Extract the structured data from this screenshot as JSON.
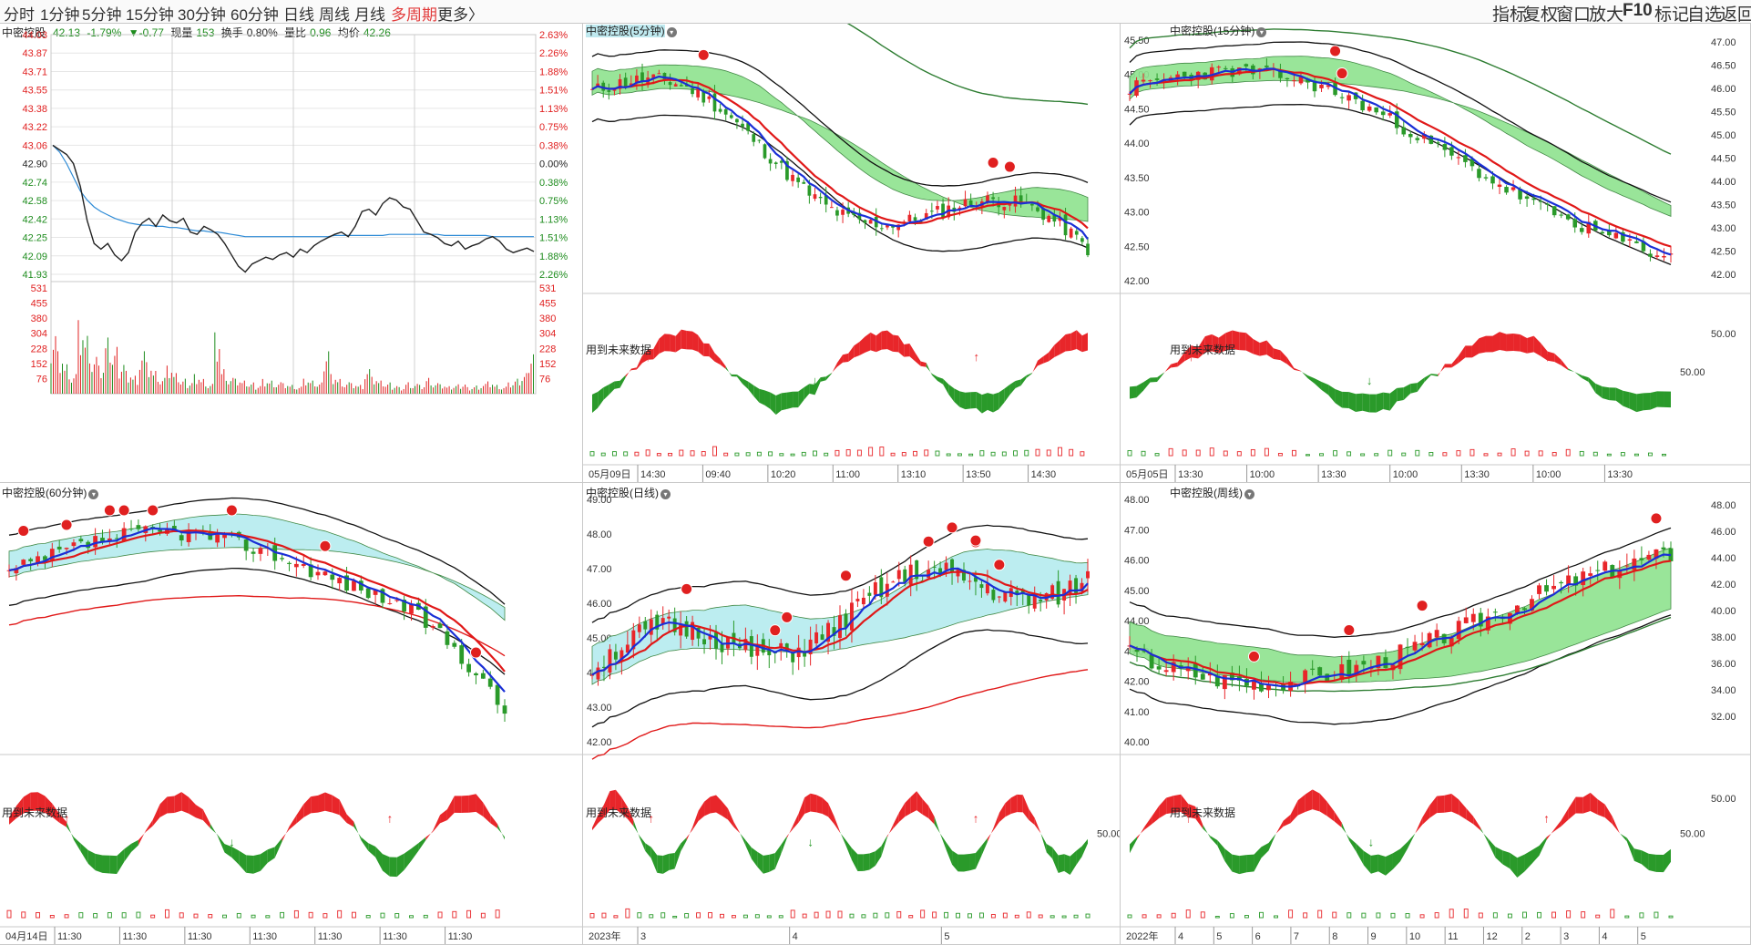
{
  "toolbar": {
    "tabs": [
      "分时",
      "1分钟",
      "5分钟",
      "15分钟",
      "30分钟",
      "60分钟",
      "日线",
      "周线",
      "月线",
      "多周期",
      "更多"
    ],
    "active_tab": "多周期",
    "more_arrow": "〉",
    "right_tools": [
      "指标",
      "复权",
      "窗口",
      "放大",
      "F10",
      "标记",
      "自选",
      "返回"
    ]
  },
  "intraday": {
    "stock": "中密控股",
    "price": "42.13",
    "change_pct": "-1.79%",
    "change": "▼-0.77",
    "volume_label": "现量",
    "volume": "153",
    "turnover_label": "换手",
    "turnover": "0.80%",
    "vol_ratio_label": "量比",
    "vol_ratio": "0.96",
    "avg_label": "均价",
    "avg": "42.26",
    "price_ticks": [
      "44.03",
      "43.87",
      "43.71",
      "43.55",
      "43.38",
      "43.22",
      "43.06",
      "42.90",
      "42.74",
      "42.58",
      "42.42",
      "42.25",
      "42.09",
      "41.93"
    ],
    "pct_ticks": [
      "2.63%",
      "2.26%",
      "1.88%",
      "1.51%",
      "1.13%",
      "0.75%",
      "0.38%",
      "0.00%",
      "0.38%",
      "0.75%",
      "1.13%",
      "1.51%",
      "1.88%",
      "2.26%"
    ],
    "vol_ticks": [
      "531",
      "455",
      "380",
      "304",
      "228",
      "152",
      "76"
    ],
    "price_series": [
      43.06,
      43.02,
      42.98,
      42.9,
      42.7,
      42.4,
      42.2,
      42.15,
      42.2,
      42.1,
      42.05,
      42.12,
      42.3,
      42.38,
      42.42,
      42.35,
      42.45,
      42.4,
      42.38,
      42.42,
      42.3,
      42.28,
      42.35,
      42.32,
      42.28,
      42.2,
      42.1,
      42.0,
      41.95,
      42.02,
      42.05,
      42.08,
      42.06,
      42.1,
      42.12,
      42.08,
      42.15,
      42.12,
      42.18,
      42.22,
      42.25,
      42.28,
      42.3,
      42.26,
      42.35,
      42.48,
      42.5,
      42.45,
      42.55,
      42.6,
      42.58,
      42.52,
      42.5,
      42.4,
      42.3,
      42.28,
      42.25,
      42.2,
      42.18,
      42.22,
      42.15,
      42.18,
      42.2,
      42.24,
      42.26,
      42.22,
      42.15,
      42.12,
      42.14,
      42.16,
      42.13
    ],
    "avg_series": [
      43.06,
      43.0,
      42.9,
      42.78,
      42.66,
      42.58,
      42.52,
      42.48,
      42.45,
      42.42,
      42.4,
      42.38,
      42.37,
      42.36,
      42.36,
      42.35,
      42.35,
      42.34,
      42.34,
      42.33,
      42.32,
      42.31,
      42.31,
      42.3,
      42.3,
      42.29,
      42.28,
      42.27,
      42.26,
      42.26,
      42.26,
      42.26,
      42.26,
      42.26,
      42.26,
      42.26,
      42.26,
      42.26,
      42.26,
      42.26,
      42.26,
      42.27,
      42.27,
      42.27,
      42.27,
      42.27,
      42.27,
      42.27,
      42.27,
      42.28,
      42.28,
      42.28,
      42.28,
      42.28,
      42.28,
      42.28,
      42.28,
      42.27,
      42.27,
      42.27,
      42.27,
      42.27,
      42.27,
      42.27,
      42.26,
      42.26,
      42.26,
      42.26,
      42.26,
      42.26,
      42.26
    ],
    "volume_series": [
      380,
      260,
      180,
      120,
      420,
      330,
      210,
      150,
      300,
      250,
      190,
      140,
      110,
      260,
      180,
      130,
      90,
      150,
      110,
      80,
      70,
      120,
      90,
      60,
      350,
      140,
      90,
      80,
      70,
      60,
      50,
      90,
      80,
      70,
      60,
      50,
      40,
      80,
      70,
      60,
      280,
      120,
      90,
      70,
      60,
      50,
      140,
      90,
      70,
      60,
      50,
      40,
      70,
      60,
      50,
      90,
      60,
      50,
      40,
      50,
      60,
      40,
      50,
      60,
      70,
      50,
      40,
      60,
      80,
      110,
      260
    ]
  },
  "panels": {
    "m5": {
      "title": "中密控股(5分钟)",
      "note": "用到未来数据",
      "date_label": "05月09日",
      "time_ticks": [
        "14:30",
        "09:40",
        "10:20",
        "11:00",
        "13:10",
        "13:50",
        "14:30"
      ]
    },
    "m15": {
      "title": "中密控股(15分钟)",
      "note": "用到未来数据",
      "date_label": "05月05日",
      "time_ticks": [
        "13:30",
        "10:00",
        "13:30",
        "10:00",
        "13:30",
        "10:00",
        "13:30"
      ],
      "price_ticks": [
        "45.50",
        "45.00",
        "44.50",
        "44.00",
        "43.50",
        "43.00",
        "42.50",
        "42.00"
      ],
      "osc_tick": "50.00"
    },
    "h60": {
      "title": "中密控股(60分钟)",
      "note": "用到未来数据",
      "date_label": "04月14日",
      "time_ticks": [
        "11:30",
        "11:30",
        "11:30",
        "11:30",
        "11:30",
        "11:30",
        "11:30"
      ]
    },
    "day": {
      "title": "中密控股(日线)",
      "note": "用到未来数据",
      "date_label": "2023年",
      "time_ticks": [
        "3",
        "4",
        "5"
      ],
      "price_ticks": [
        "49.00",
        "48.00",
        "47.00",
        "46.00",
        "45.00",
        "44.00",
        "43.00",
        "42.00"
      ],
      "osc_tick": "50.00"
    },
    "week": {
      "title": "中密控股(周线)",
      "note": "用到未来数据",
      "date_label": "2022年",
      "time_ticks": [
        "4",
        "5",
        "6",
        "7",
        "8",
        "9",
        "10",
        "11",
        "12",
        "2",
        "3",
        "4",
        "5"
      ],
      "price_ticks": [
        "48.00",
        "47.00",
        "46.00",
        "45.00",
        "44.00",
        "43.00",
        "42.00",
        "41.00",
        "40.00"
      ],
      "osc_tick": "50.00"
    }
  },
  "right_axis": {
    "top_ticks": [
      "47.00",
      "46.50",
      "46.00",
      "45.50",
      "45.00",
      "44.50",
      "44.00",
      "43.50",
      "43.00",
      "42.50",
      "42.00"
    ],
    "top_osc": "50.00",
    "bottom_ticks": [
      "48.00",
      "46.00",
      "44.00",
      "42.00",
      "40.00",
      "38.00",
      "36.00",
      "34.00",
      "32.00"
    ],
    "bottom_osc": "50.00"
  },
  "colors": {
    "up": "#e8262a",
    "down": "#2a9a2a",
    "band_green": "#8fe38f",
    "band_cyan": "#b5ecef",
    "ma_blue": "#1a2fd6",
    "ma_red": "#e01818",
    "ma_dark": "#111111",
    "ma_green": "#2e7d32"
  }
}
